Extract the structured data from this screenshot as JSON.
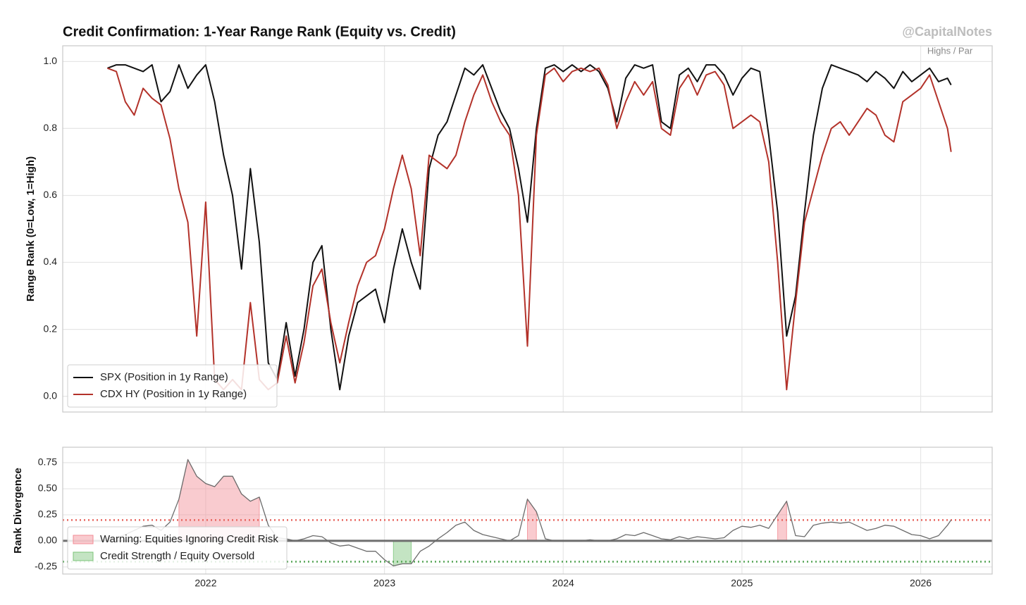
{
  "chart_data": [
    {
      "type": "line",
      "title": "Credit Confirmation: 1-Year Range Rank (Equity vs. Credit)",
      "watermark": "@CapitalNotes",
      "annotation": "Highs / Par",
      "ylabel": "Range Rank (0=Low, 1=High)",
      "x": [
        2021.45,
        2021.5,
        2021.55,
        2021.6,
        2021.65,
        2021.7,
        2021.75,
        2021.8,
        2021.85,
        2021.9,
        2021.95,
        2022.0,
        2022.05,
        2022.1,
        2022.15,
        2022.2,
        2022.25,
        2022.3,
        2022.35,
        2022.4,
        2022.45,
        2022.5,
        2022.55,
        2022.6,
        2022.65,
        2022.7,
        2022.75,
        2022.8,
        2022.85,
        2022.9,
        2022.95,
        2023.0,
        2023.05,
        2023.1,
        2023.15,
        2023.2,
        2023.25,
        2023.3,
        2023.35,
        2023.4,
        2023.45,
        2023.5,
        2023.55,
        2023.6,
        2023.65,
        2023.7,
        2023.75,
        2023.8,
        2023.85,
        2023.9,
        2023.95,
        2024.0,
        2024.05,
        2024.1,
        2024.15,
        2024.2,
        2024.25,
        2024.3,
        2024.35,
        2024.4,
        2024.45,
        2024.5,
        2024.55,
        2024.6,
        2024.65,
        2024.7,
        2024.75,
        2024.8,
        2024.85,
        2024.9,
        2024.95,
        2025.0,
        2025.05,
        2025.1,
        2025.15,
        2025.2,
        2025.25,
        2025.3,
        2025.35,
        2025.4,
        2025.45,
        2025.5,
        2025.55,
        2025.6,
        2025.65,
        2025.7,
        2025.75,
        2025.8,
        2025.85,
        2025.9,
        2025.95,
        2026.0,
        2026.05,
        2026.1,
        2026.15,
        2026.17
      ],
      "series": [
        {
          "name": "SPX (Position in 1y Range)",
          "color": "#111111",
          "values": [
            0.98,
            0.99,
            0.99,
            0.98,
            0.97,
            0.99,
            0.88,
            0.91,
            0.99,
            0.92,
            0.96,
            0.99,
            0.88,
            0.72,
            0.6,
            0.38,
            0.68,
            0.46,
            0.1,
            0.05,
            0.22,
            0.06,
            0.2,
            0.4,
            0.45,
            0.2,
            0.02,
            0.18,
            0.28,
            0.3,
            0.32,
            0.22,
            0.38,
            0.5,
            0.4,
            0.32,
            0.68,
            0.78,
            0.82,
            0.9,
            0.98,
            0.96,
            0.99,
            0.92,
            0.85,
            0.8,
            0.68,
            0.52,
            0.8,
            0.98,
            0.99,
            0.97,
            0.99,
            0.97,
            0.99,
            0.97,
            0.92,
            0.82,
            0.95,
            0.99,
            0.98,
            0.99,
            0.82,
            0.8,
            0.96,
            0.98,
            0.94,
            0.99,
            0.99,
            0.96,
            0.9,
            0.95,
            0.98,
            0.97,
            0.78,
            0.55,
            0.18,
            0.3,
            0.55,
            0.78,
            0.92,
            0.99,
            0.98,
            0.97,
            0.96,
            0.94,
            0.97,
            0.95,
            0.92,
            0.97,
            0.94,
            0.96,
            0.98,
            0.94,
            0.95,
            0.93
          ]
        },
        {
          "name": "CDX HY (Position in 1y Range)",
          "color": "#b3322a",
          "values": [
            0.98,
            0.97,
            0.88,
            0.84,
            0.92,
            0.89,
            0.87,
            0.77,
            0.62,
            0.52,
            0.18,
            0.58,
            0.05,
            0.02,
            0.05,
            0.02,
            0.28,
            0.05,
            0.02,
            0.04,
            0.18,
            0.04,
            0.16,
            0.33,
            0.38,
            0.22,
            0.1,
            0.22,
            0.33,
            0.4,
            0.42,
            0.5,
            0.62,
            0.72,
            0.62,
            0.42,
            0.72,
            0.7,
            0.68,
            0.72,
            0.82,
            0.9,
            0.96,
            0.88,
            0.82,
            0.78,
            0.6,
            0.15,
            0.78,
            0.96,
            0.98,
            0.94,
            0.97,
            0.98,
            0.97,
            0.98,
            0.93,
            0.8,
            0.88,
            0.94,
            0.9,
            0.94,
            0.8,
            0.78,
            0.92,
            0.96,
            0.9,
            0.96,
            0.97,
            0.93,
            0.8,
            0.82,
            0.84,
            0.82,
            0.7,
            0.4,
            0.02,
            0.28,
            0.52,
            0.62,
            0.72,
            0.8,
            0.82,
            0.78,
            0.82,
            0.86,
            0.84,
            0.78,
            0.76,
            0.88,
            0.9,
            0.92,
            0.96,
            0.88,
            0.8,
            0.73
          ]
        }
      ],
      "xlim": [
        2021.2,
        2026.4
      ],
      "xticks": [
        2022,
        2023,
        2024,
        2025,
        2026
      ],
      "ylim": [
        -0.047,
        1.047
      ],
      "yticks": [
        {
          "value": 0,
          "label": "0.0"
        },
        0.2,
        0.4,
        0.6,
        0.8,
        {
          "value": 1,
          "label": "1.0"
        }
      ],
      "grid": true,
      "legend": "lower left"
    },
    {
      "type": "divergence",
      "ylabel": "Rank Divergence",
      "x": [
        2021.45,
        2021.5,
        2021.55,
        2021.6,
        2021.65,
        2021.7,
        2021.75,
        2021.8,
        2021.85,
        2021.9,
        2021.95,
        2022.0,
        2022.05,
        2022.1,
        2022.15,
        2022.2,
        2022.25,
        2022.3,
        2022.35,
        2022.4,
        2022.45,
        2022.5,
        2022.55,
        2022.6,
        2022.65,
        2022.7,
        2022.75,
        2022.8,
        2022.85,
        2022.9,
        2022.95,
        2023.0,
        2023.05,
        2023.1,
        2023.15,
        2023.2,
        2023.25,
        2023.3,
        2023.35,
        2023.4,
        2023.45,
        2023.5,
        2023.55,
        2023.6,
        2023.65,
        2023.7,
        2023.75,
        2023.8,
        2023.85,
        2023.9,
        2023.95,
        2024.0,
        2024.05,
        2024.1,
        2024.15,
        2024.2,
        2024.25,
        2024.3,
        2024.35,
        2024.4,
        2024.45,
        2024.5,
        2024.55,
        2024.6,
        2024.65,
        2024.7,
        2024.75,
        2024.8,
        2024.85,
        2024.9,
        2024.95,
        2025.0,
        2025.05,
        2025.1,
        2025.15,
        2025.2,
        2025.25,
        2025.3,
        2025.35,
        2025.4,
        2025.45,
        2025.5,
        2025.55,
        2025.6,
        2025.65,
        2025.7,
        2025.75,
        2025.8,
        2025.85,
        2025.9,
        2025.95,
        2026.0,
        2026.05,
        2026.1,
        2026.15,
        2026.17
      ],
      "values": [
        0.02,
        0.03,
        0.06,
        0.1,
        0.14,
        0.15,
        0.1,
        0.18,
        0.4,
        0.78,
        0.62,
        0.55,
        0.52,
        0.62,
        0.62,
        0.45,
        0.38,
        0.42,
        0.15,
        0.03,
        0.02,
        0.0,
        0.02,
        0.05,
        0.04,
        -0.02,
        -0.05,
        -0.04,
        -0.07,
        -0.1,
        -0.1,
        -0.18,
        -0.24,
        -0.22,
        -0.22,
        -0.1,
        -0.05,
        0.02,
        0.08,
        0.15,
        0.18,
        0.1,
        0.06,
        0.04,
        0.02,
        0.0,
        0.05,
        0.4,
        0.28,
        0.02,
        0.0,
        0.0,
        0.0,
        0.0,
        0.01,
        0.0,
        0.0,
        0.02,
        0.06,
        0.05,
        0.08,
        0.05,
        0.02,
        0.01,
        0.04,
        0.02,
        0.04,
        0.03,
        0.02,
        0.03,
        0.1,
        0.14,
        0.13,
        0.15,
        0.12,
        0.25,
        0.38,
        0.05,
        0.04,
        0.15,
        0.17,
        0.18,
        0.17,
        0.18,
        0.14,
        0.1,
        0.12,
        0.15,
        0.14,
        0.1,
        0.06,
        0.05,
        0.02,
        0.05,
        0.15,
        0.2
      ],
      "color": "#6b6b6b",
      "fills": [
        {
          "name": "Warning: Equities Ignoring Credit Risk",
          "color": "#f28b94",
          "threshold": 0.2
        },
        {
          "name": "Credit Strength / Equity Oversold",
          "color": "#7cc47a",
          "threshold": -0.2
        }
      ],
      "hlines": [
        {
          "value": 0.2,
          "color": "#e8665f"
        },
        {
          "value": -0.2,
          "color": "#55a555"
        },
        {
          "value": 0,
          "color": "#6e6e6e"
        }
      ],
      "xlim": [
        2021.2,
        2026.4
      ],
      "xticks": [
        2022,
        2023,
        2024,
        2025,
        2026
      ],
      "ylim": [
        -0.318,
        0.898
      ],
      "yticks": [
        {
          "value": -0.25,
          "label": "-0.25"
        },
        {
          "value": 0,
          "label": "0.00"
        },
        0.25,
        {
          "value": 0.5,
          "label": "0.50"
        },
        0.75
      ],
      "grid": true,
      "legend": "lower left"
    }
  ]
}
